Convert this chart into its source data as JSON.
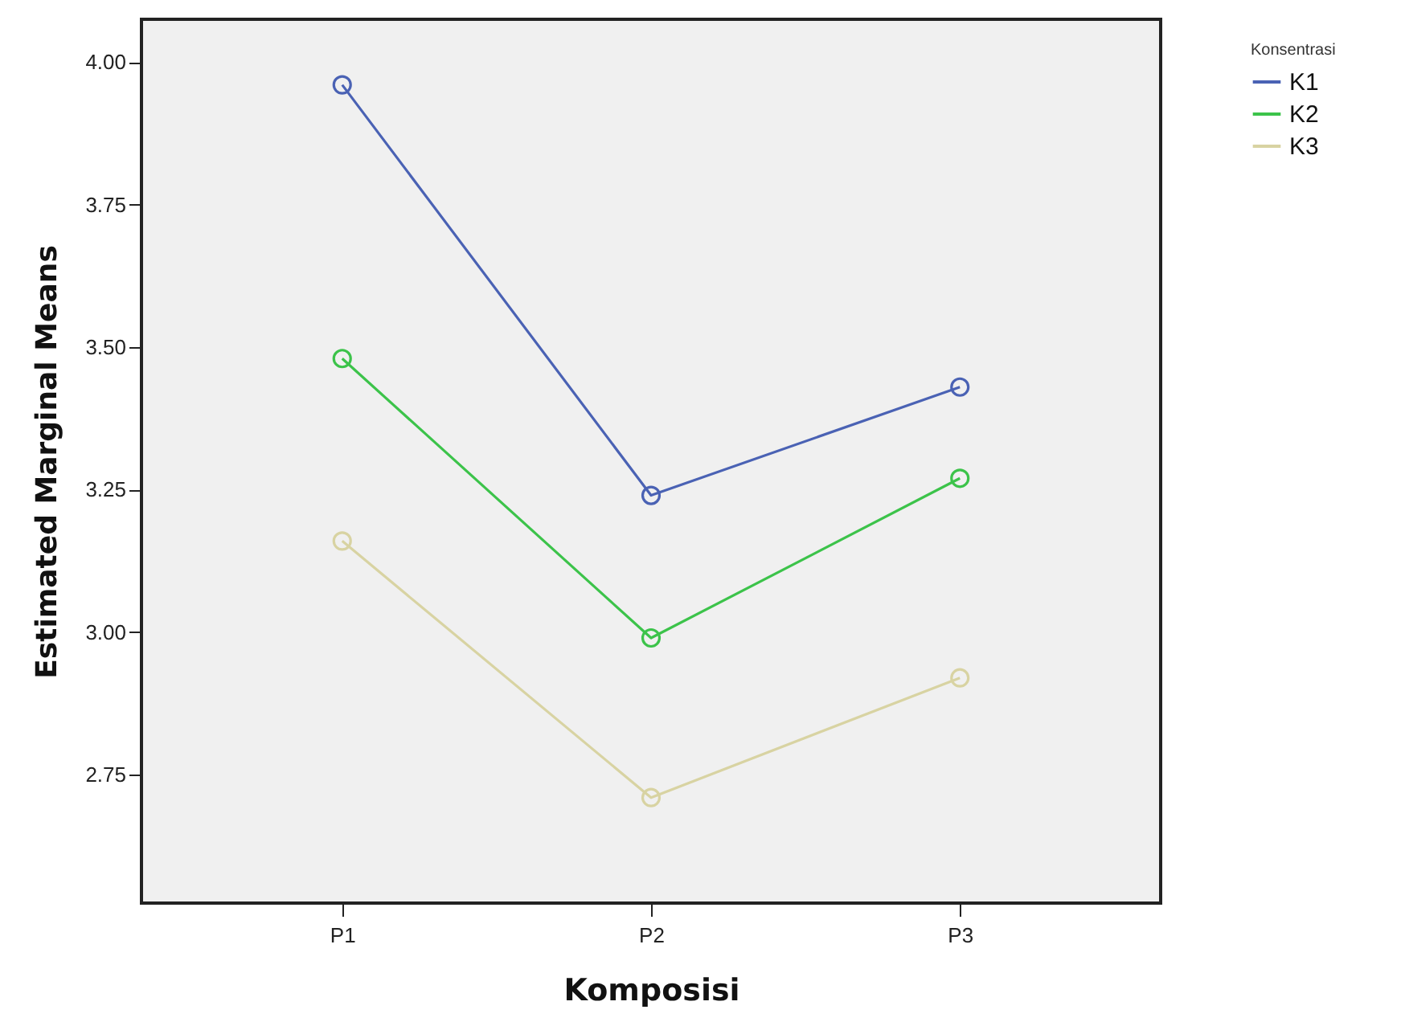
{
  "chart_data": {
    "type": "line",
    "xlabel": "Komposisi",
    "ylabel": "Estimated Marginal Means",
    "legend_title": "Konsentrasi",
    "categories": [
      "P1",
      "P2",
      "P3"
    ],
    "series": [
      {
        "name": "K1",
        "color": "#4a62b4",
        "values": [
          3.96,
          3.24,
          3.43
        ]
      },
      {
        "name": "K2",
        "color": "#3cc34a",
        "values": [
          3.48,
          2.99,
          3.27
        ]
      },
      {
        "name": "K3",
        "color": "#d8d3a2",
        "values": [
          3.16,
          2.71,
          2.92
        ]
      }
    ],
    "ylim": [
      2.525,
      4.075
    ],
    "yticks": [
      {
        "value": 2.75,
        "label": "2.75"
      },
      {
        "value": 3,
        "label": "3.00"
      },
      {
        "value": 3.25,
        "label": "3.25"
      },
      {
        "value": 3.5,
        "label": "3.50"
      },
      {
        "value": 3.75,
        "label": "3.75"
      },
      {
        "value": 4,
        "label": "4.00"
      }
    ],
    "grid": false,
    "legend": "top right",
    "marker": "circle",
    "line_style": "solid"
  }
}
